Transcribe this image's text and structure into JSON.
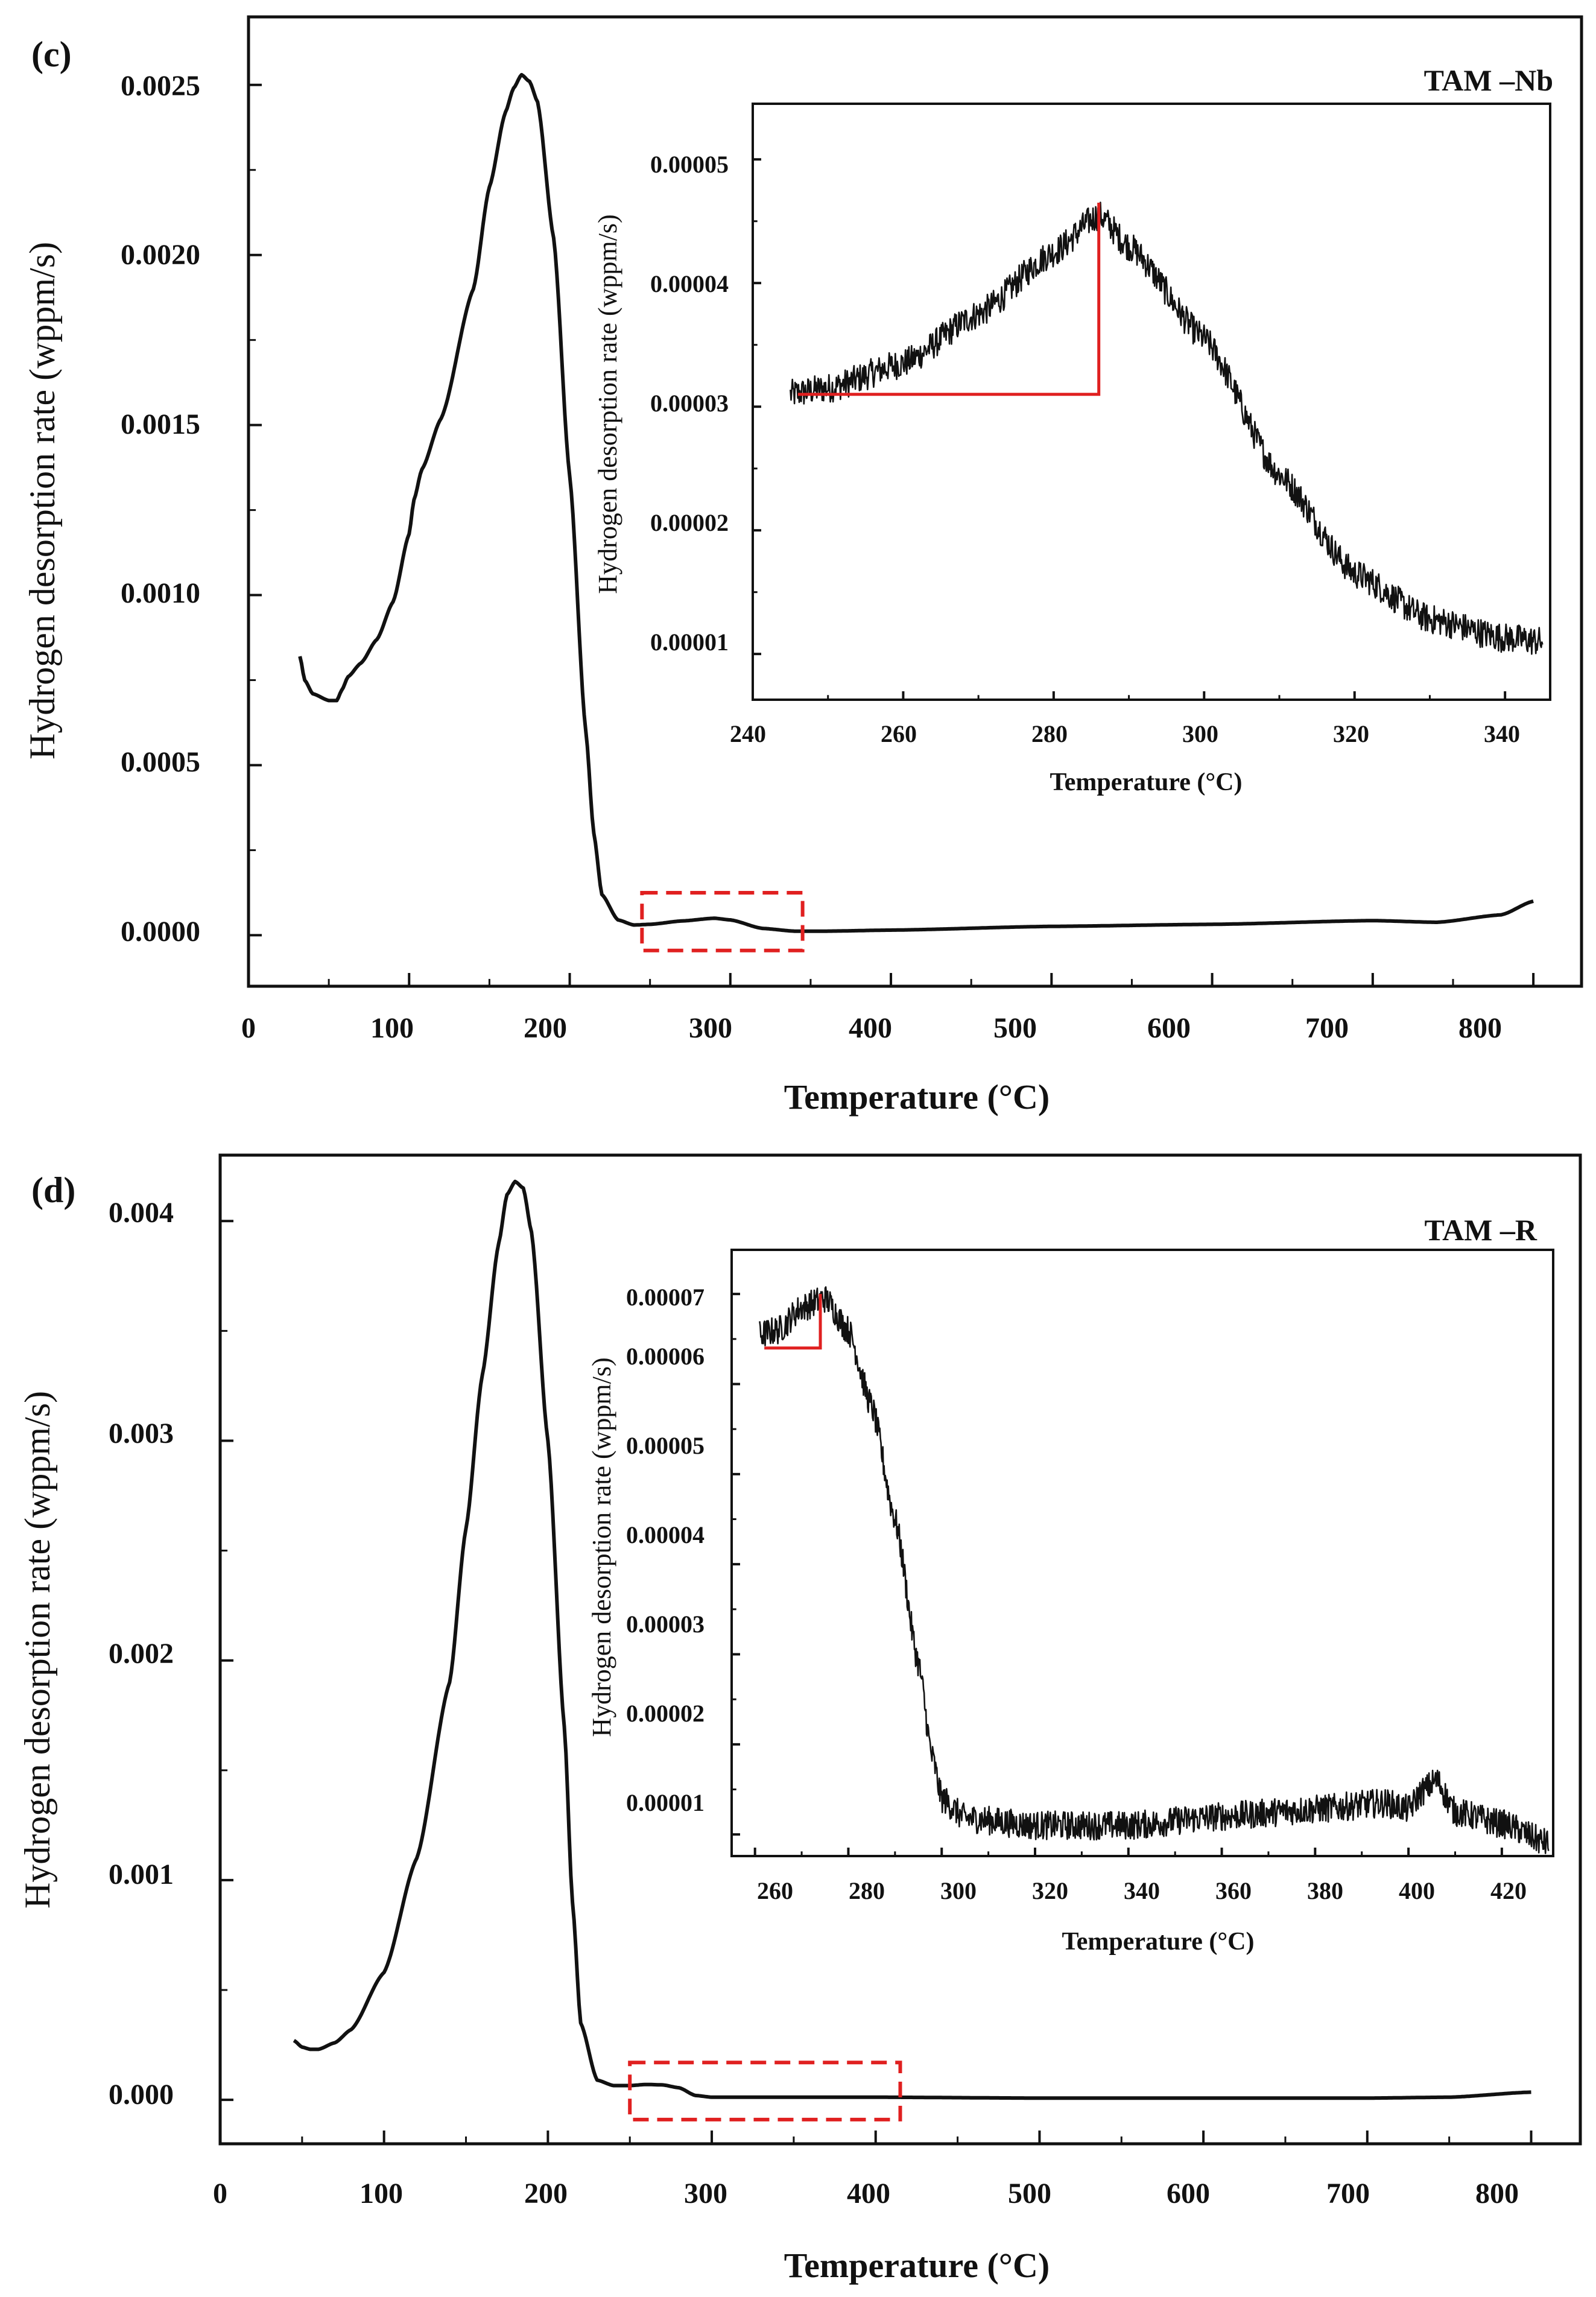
{
  "figure": {
    "panels": [
      {
        "panel_label": "(c)",
        "sample_label": "TAM –Nb",
        "main": {
          "xlabel": "Temperature (°C)",
          "ylabel": "Hydrogen desorption rate (wppm/s)",
          "x_ticks": [
            "0",
            "100",
            "200",
            "300",
            "400",
            "500",
            "600",
            "700",
            "800"
          ],
          "y_ticks": [
            "0.0000",
            "0.0005",
            "0.0010",
            "0.0015",
            "0.0020",
            "0.0025"
          ]
        },
        "inset": {
          "xlabel": "Temperature (°C)",
          "ylabel": "Hydrogen desorption rate (wppm/s)",
          "x_ticks": [
            "240",
            "260",
            "280",
            "300",
            "320",
            "340"
          ],
          "y_ticks": [
            "0.00001",
            "0.00002",
            "0.00003",
            "0.00004",
            "0.00005"
          ]
        }
      },
      {
        "panel_label": "(d)",
        "sample_label": "TAM –R",
        "main": {
          "xlabel": "Temperature (°C)",
          "ylabel": "Hydrogen desorption rate (wppm/s)",
          "x_ticks": [
            "0",
            "100",
            "200",
            "300",
            "400",
            "500",
            "600",
            "700",
            "800"
          ],
          "y_ticks": [
            "0.000",
            "0.001",
            "0.002",
            "0.003",
            "0.004"
          ]
        },
        "inset": {
          "xlabel": "Temperature (°C)",
          "ylabel": "Hydrogen desorption rate (wppm/s)",
          "x_ticks": [
            "260",
            "280",
            "300",
            "320",
            "340",
            "360",
            "380",
            "400",
            "420"
          ],
          "y_ticks": [
            "0.00001",
            "0.00002",
            "0.00003",
            "0.00004",
            "0.00005",
            "0.00006",
            "0.00007"
          ]
        }
      }
    ]
  },
  "colors": {
    "curve": "#111111",
    "annotation": "#e02020",
    "background": "#ffffff"
  },
  "chart_data": [
    {
      "type": "line",
      "id": "c-main",
      "title": "(c) TAM –Nb",
      "xlabel": "Temperature (°C)",
      "ylabel": "Hydrogen desorption rate (wppm/s)",
      "xlim": [
        0,
        830
      ],
      "ylim": [
        -0.00015,
        0.0027
      ],
      "x": [
        32,
        35,
        40,
        50,
        55,
        58,
        62,
        70,
        80,
        90,
        100,
        103,
        108,
        120,
        140,
        150,
        160,
        165,
        170,
        175,
        180,
        190,
        200,
        210,
        215,
        220,
        230,
        240,
        250,
        270,
        290,
        300,
        320,
        340,
        360,
        400,
        500,
        600,
        700,
        740,
        780,
        800
      ],
      "series": [
        {
          "name": "TAM –Nb",
          "values": [
            0.00082,
            0.00075,
            0.00071,
            0.00069,
            0.00069,
            0.00072,
            0.00076,
            0.0008,
            0.00087,
            0.00098,
            0.00118,
            0.00128,
            0.00137,
            0.00152,
            0.0019,
            0.0022,
            0.00242,
            0.00249,
            0.00253,
            0.00251,
            0.00245,
            0.00205,
            0.00135,
            0.0006,
            0.0003,
            0.00012,
            4.5e-05,
            3e-05,
            3.2e-05,
            4.2e-05,
            5e-05,
            4.5e-05,
            2e-05,
            1.2e-05,
            1.2e-05,
            1.5e-05,
            2.6e-05,
            3.2e-05,
            4.3e-05,
            3.8e-05,
            6e-05,
            0.0001
          ]
        }
      ],
      "annotation_box": {
        "x": [
          245,
          345
        ],
        "y": [
          -4.5e-05,
          0.000125
        ]
      }
    },
    {
      "type": "line",
      "id": "c-inset",
      "xlabel": "Temperature (°C)",
      "ylabel": "Hydrogen desorption rate (wppm/s)",
      "xlim": [
        240,
        346
      ],
      "ylim": [
        6.3e-06,
        5.45e-05
      ],
      "x": [
        245,
        250,
        260,
        270,
        280,
        286,
        290,
        300,
        310,
        320,
        330,
        340,
        345
      ],
      "series": [
        {
          "name": "TAM –Nb (inset)",
          "values": [
            3.1e-05,
            3.15e-05,
            3.35e-05,
            3.75e-05,
            4.25e-05,
            4.55e-05,
            4.3e-05,
            3.55e-05,
            2.45e-05,
            1.65e-05,
            1.28e-05,
            1.13e-05,
            1.1e-05
          ]
        }
      ],
      "annotation": {
        "x": [
          246,
          286
        ],
        "y": [
          3.1e-05,
          4.65e-05
        ]
      }
    },
    {
      "type": "line",
      "id": "d-main",
      "title": "(d) TAM –R",
      "xlabel": "Temperature (°C)",
      "ylabel": "Hydrogen desorption rate (wppm/s)",
      "xlim": [
        0,
        830
      ],
      "ylim": [
        -0.0002,
        0.0043
      ],
      "x": [
        45,
        50,
        55,
        60,
        70,
        80,
        100,
        120,
        140,
        150,
        160,
        170,
        175,
        180,
        185,
        190,
        200,
        210,
        215,
        220,
        230,
        240,
        250,
        260,
        270,
        280,
        290,
        300,
        350,
        400,
        500,
        600,
        700,
        750,
        800
      ],
      "series": [
        {
          "name": "TAM –R",
          "values": [
            0.00027,
            0.00024,
            0.00023,
            0.00023,
            0.00026,
            0.00032,
            0.00058,
            0.0011,
            0.0019,
            0.0026,
            0.0033,
            0.0039,
            0.00412,
            0.00418,
            0.00415,
            0.00395,
            0.003,
            0.0017,
            0.0009,
            0.00035,
            9e-05,
            6.5e-05,
            6.5e-05,
            7e-05,
            6.8e-05,
            5.5e-05,
            2e-05,
            1.2e-05,
            1.2e-05,
            1.2e-05,
            8e-06,
            8e-06,
            8e-06,
            1.2e-05,
            3.5e-05
          ]
        }
      ],
      "annotation_box": {
        "x": [
          250,
          415
        ],
        "y": [
          -9e-05,
          0.00017
        ]
      }
    },
    {
      "type": "line",
      "id": "d-inset",
      "xlabel": "Temperature (°C)",
      "ylabel": "Hydrogen desorption rate (wppm/s)",
      "xlim": [
        255,
        431
      ],
      "ylim": [
        7.6e-06,
        7.49e-05
      ],
      "x": [
        261,
        265,
        270,
        275,
        280,
        285,
        290,
        295,
        298,
        300,
        305,
        320,
        340,
        360,
        380,
        395,
        400,
        403,
        406,
        410,
        420,
        430
      ],
      "series": [
        {
          "name": "TAM –R (inset)",
          "values": [
            6.55e-05,
            6.6e-05,
            6.85e-05,
            6.95e-05,
            6.6e-05,
            5.75e-05,
            4.5e-05,
            2.9e-05,
            1.85e-05,
            1.4e-05,
            1.18e-05,
            1.1e-05,
            1.1e-05,
            1.2e-05,
            1.28e-05,
            1.35e-05,
            1.28e-05,
            1.48e-05,
            1.6e-05,
            1.25e-05,
            1.12e-05,
            9e-06
          ]
        }
      ],
      "annotation": {
        "x": [
          262,
          274
        ],
        "y": [
          6.4e-05,
          7e-05
        ]
      }
    }
  ]
}
